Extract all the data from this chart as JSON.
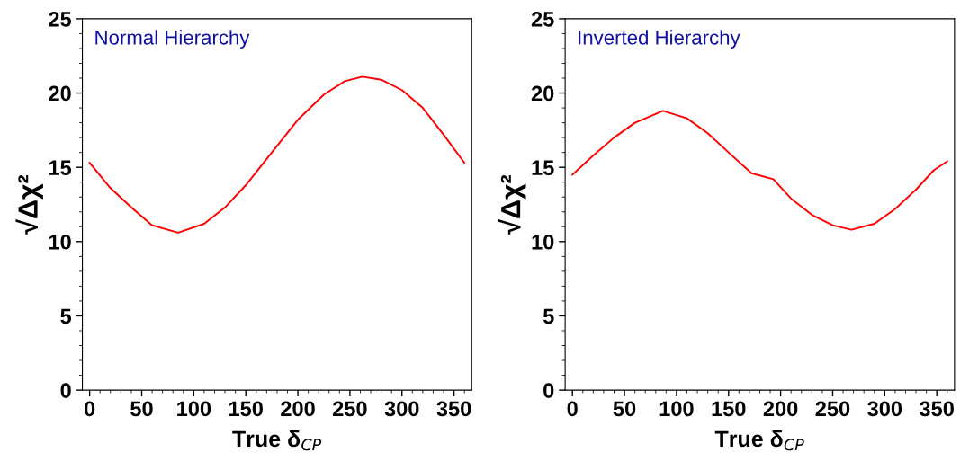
{
  "chart_data": [
    {
      "type": "line",
      "xlabel": "True δ$_{CP}$",
      "ylabel": "√Δχ²",
      "annotations": [
        "Normal Hierarchy"
      ],
      "xlim": [
        -7,
        367
      ],
      "ylim": [
        0,
        25
      ],
      "xticks": [
        0,
        50,
        100,
        150,
        200,
        250,
        300,
        350
      ],
      "yticks": [
        0,
        5,
        10,
        15,
        20,
        25
      ],
      "grid": false,
      "marker": "none",
      "line_style": "solid",
      "series": [
        {
          "color": "#ff0000",
          "x": [
            0,
            20,
            40,
            60,
            85,
            110,
            130,
            150,
            175,
            200,
            225,
            245,
            262,
            280,
            300,
            320,
            340,
            360
          ],
          "values": [
            15.3,
            13.6,
            12.3,
            11.1,
            10.6,
            11.2,
            12.3,
            13.8,
            16.0,
            18.2,
            19.9,
            20.8,
            21.1,
            20.9,
            20.2,
            19.0,
            17.2,
            15.3
          ]
        }
      ]
    },
    {
      "type": "line",
      "xlabel": "True δ$_{CP}$",
      "ylabel": "√Δχ²",
      "annotations": [
        "Inverted Hierarchy"
      ],
      "xlim": [
        -7,
        367
      ],
      "ylim": [
        0,
        25
      ],
      "xticks": [
        0,
        50,
        100,
        150,
        200,
        250,
        300,
        350
      ],
      "yticks": [
        0,
        5,
        10,
        15,
        20,
        25
      ],
      "grid": false,
      "marker": "none",
      "line_style": "solid",
      "series": [
        {
          "color": "#ff0000",
          "x": [
            0,
            20,
            40,
            60,
            87,
            110,
            130,
            150,
            172,
            193,
            210,
            230,
            250,
            268,
            290,
            310,
            330,
            347,
            360
          ],
          "values": [
            14.5,
            15.8,
            17.0,
            18.0,
            18.8,
            18.3,
            17.3,
            16.0,
            14.6,
            14.2,
            12.9,
            11.8,
            11.1,
            10.8,
            11.2,
            12.2,
            13.5,
            14.8,
            15.4
          ]
        }
      ]
    }
  ]
}
